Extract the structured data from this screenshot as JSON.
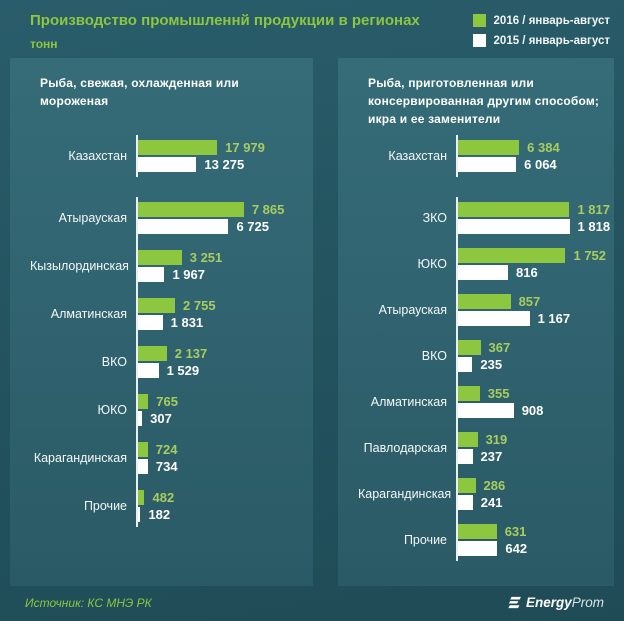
{
  "header": {
    "title": "Производство промышленнй продукции в регионах",
    "subtitle": "тонн",
    "legend": [
      {
        "label": "2016 / январь-август",
        "color": "#8dc63f"
      },
      {
        "label": "2015 / январь-август",
        "color": "#ffffff"
      }
    ]
  },
  "chart_data": [
    {
      "type": "bar",
      "orientation": "horizontal",
      "title": "Рыба, свежая, охлажденная или мороженая",
      "series": [
        "2016 / январь-август",
        "2015 / январь-август"
      ],
      "colors": [
        "#8dc63f",
        "#ffffff"
      ],
      "legend_position": "top-right",
      "grid": false,
      "groups": [
        {
          "axis_max": 38400,
          "rows": [
            {
              "label": "Казахстан",
              "values": [
                17979,
                13275
              ],
              "display": [
                "17 979",
                "13 275"
              ]
            }
          ]
        },
        {
          "axis_max": 12560,
          "rows": [
            {
              "label": "Атырауская",
              "values": [
                7865,
                6725
              ],
              "display": [
                "7 865",
                "6 725"
              ]
            },
            {
              "label": "Кызылординская",
              "values": [
                3251,
                1967
              ],
              "display": [
                "3 251",
                "1 967"
              ]
            },
            {
              "label": "Алматинская",
              "values": [
                2755,
                1831
              ],
              "display": [
                "2 755",
                "1 831"
              ]
            },
            {
              "label": "ВКО",
              "values": [
                2137,
                1529
              ],
              "display": [
                "2 137",
                "1 529"
              ]
            },
            {
              "label": "ЮКО",
              "values": [
                765,
                307
              ],
              "display": [
                "765",
                "307"
              ]
            },
            {
              "label": "Карагандинская",
              "values": [
                724,
                734
              ],
              "display": [
                "724",
                "734"
              ]
            },
            {
              "label": "Прочие",
              "values": [
                482,
                182
              ],
              "display": [
                "482",
                "182"
              ]
            }
          ]
        }
      ]
    },
    {
      "type": "bar",
      "orientation": "horizontal",
      "title": "Рыба, приготовленная или консервированная другим способом; икра и ее заменители",
      "series": [
        "2016 / январь-август",
        "2015 / январь-август"
      ],
      "colors": [
        "#8dc63f",
        "#ffffff"
      ],
      "legend_position": "top-right",
      "grid": false,
      "groups": [
        {
          "axis_max": 15650,
          "rows": [
            {
              "label": "Казахстан",
              "values": [
                6384,
                6064
              ],
              "display": [
                "6 384",
                "6 064"
              ]
            }
          ]
        },
        {
          "axis_max": 2445,
          "rows": [
            {
              "label": "ЗКО",
              "values": [
                1817,
                1818
              ],
              "display": [
                "1 817",
                "1 818"
              ]
            },
            {
              "label": "ЮКО",
              "values": [
                1752,
                816
              ],
              "display": [
                "1 752",
                "816"
              ]
            },
            {
              "label": "Атырауская",
              "values": [
                857,
                1167
              ],
              "display": [
                "857",
                "1 167"
              ]
            },
            {
              "label": "ВКО",
              "values": [
                367,
                235
              ],
              "display": [
                "367",
                "235"
              ]
            },
            {
              "label": "Алматинская",
              "values": [
                355,
                908
              ],
              "display": [
                "355",
                "908"
              ]
            },
            {
              "label": "Павлодарская",
              "values": [
                319,
                237
              ],
              "display": [
                "319",
                "237"
              ]
            },
            {
              "label": "Карагандинская",
              "values": [
                286,
                241
              ],
              "display": [
                "286",
                "241"
              ]
            },
            {
              "label": "Прочие",
              "values": [
                631,
                642
              ],
              "display": [
                "631",
                "642"
              ]
            }
          ]
        }
      ]
    }
  ],
  "footer": {
    "source": "Источник: КС МНЭ РК",
    "logo_bold": "Energy",
    "logo_light": "Prom"
  },
  "colors": {
    "accent_green": "#8dc63f",
    "value_label_green": "#a8cd5e",
    "bar_white": "#ffffff",
    "background_teal": "#235460",
    "panel_teal": "#2f6370"
  }
}
